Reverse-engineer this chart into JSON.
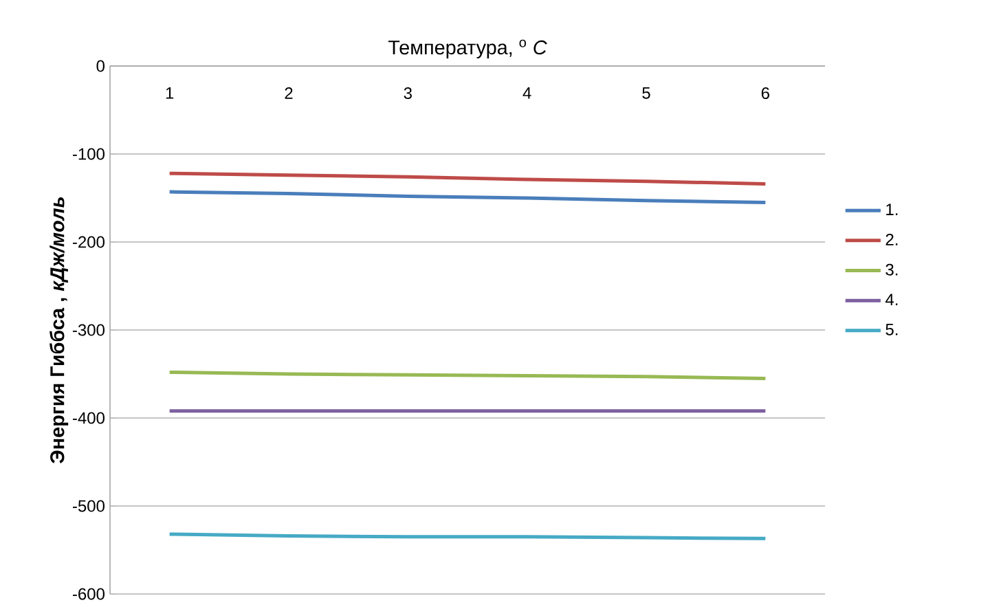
{
  "chart_data": {
    "type": "line",
    "xlabel": "Температура, $^{o}$ *C*",
    "ylabel": "Энергия Гиббса , *кДж/моль*",
    "categories": [
      "1",
      "2",
      "3",
      "4",
      "5",
      "6"
    ],
    "series": [
      {
        "name": "1.",
        "color": "#4a7ebb",
        "values": [
          -143,
          -145,
          -148,
          -150,
          -153,
          -155
        ]
      },
      {
        "name": "2.",
        "color": "#be4b48",
        "values": [
          -122,
          -124,
          -126,
          -129,
          -131,
          -134
        ]
      },
      {
        "name": "3.",
        "color": "#98b954",
        "values": [
          -348,
          -350,
          -351,
          -352,
          -353,
          -355
        ]
      },
      {
        "name": "4.",
        "color": "#7d60a0",
        "values": [
          -392,
          -392,
          -392,
          -392,
          -392,
          -392
        ]
      },
      {
        "name": "5.",
        "color": "#46aac5",
        "values": [
          -532,
          -534,
          -535,
          -535,
          -536,
          -537
        ]
      }
    ],
    "ylim": [
      -600,
      0
    ],
    "yticks": [
      -600,
      -500,
      -400,
      -300,
      -200,
      -100,
      0
    ],
    "grid": "y",
    "legend": "right",
    "marker": "none",
    "line_style": "solid"
  }
}
